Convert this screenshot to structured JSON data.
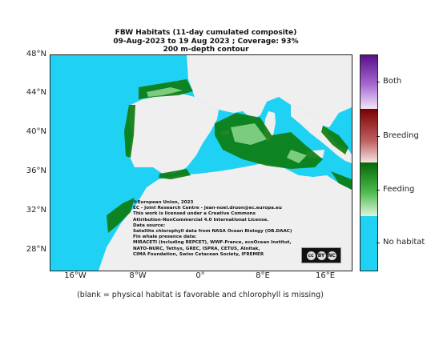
{
  "title": {
    "line1": "FBW  Habitats (11-day cumulated composite)",
    "line2": "09-Aug-2023 to 19 Aug 2023 ; Coverage: 93%",
    "line3": "200 m-depth contour"
  },
  "axes": {
    "lat_ticks": [
      "48°N",
      "44°N",
      "40°N",
      "36°N",
      "32°N",
      "28°N"
    ],
    "lon_ticks": [
      "16°W",
      "8°W",
      "0°",
      "8°E",
      "16°E"
    ]
  },
  "credit": [
    "©European Union, 2023",
    "EC - Joint Research Centre - jean-noel.druon@ec.europa.eu",
    "This work is licensed under a Creative Commons",
    "Attribution-NonCommercial 4.0 International License.",
    "Data source:",
    "Satellite chlorophyll data from NASA Ocean Biology (OB.DAAC)",
    "Fin whale presence data:",
    "MIRACETI (including REPCET), WWF-France, ecoOcean Institut,",
    "NATO-NURC, Tethys, GREC, ISPRA, CETUS, Alnitak,",
    "CIMA Foundation, Swiss Cetacean Society, IFREMER"
  ],
  "license_badge": {
    "cc": "cc",
    "by": "BY",
    "nc": "NC"
  },
  "legend": {
    "items": [
      {
        "label": "Both",
        "color": "#7b1fa2"
      },
      {
        "label": "Breeding",
        "color": "#8b0000"
      },
      {
        "label": "Feeding",
        "color": "#0b7a0b"
      },
      {
        "label": "No habitat",
        "color": "#1fd2f4"
      }
    ]
  },
  "footnote": "(blank = physical habitat is favorable and chlorophyll is missing)",
  "colors": {
    "ocean": "#1fd2f4",
    "land": "#efefef",
    "feeding_dark": "#0b7a0b",
    "feeding_light": "#8fd98f"
  }
}
